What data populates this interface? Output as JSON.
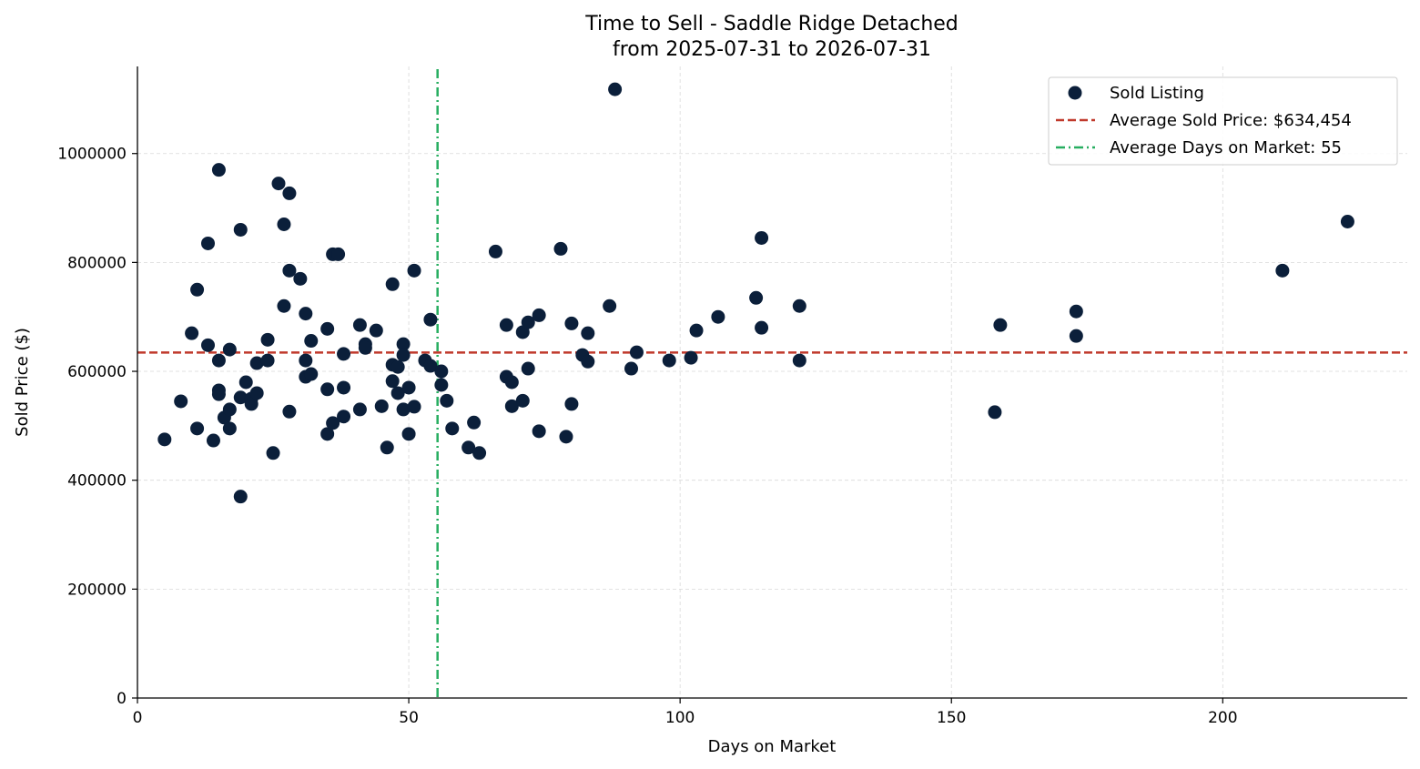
{
  "chart_data": {
    "type": "scatter",
    "title_line1": "Time to Sell - Saddle Ridge Detached",
    "title_line2": "from 2025-07-31 to 2026-07-31",
    "xlabel": "Days on Market",
    "ylabel": "Sold Price ($)",
    "xlim": [
      0,
      234
    ],
    "ylim": [
      0,
      1160000
    ],
    "x_ticks": [
      0,
      50,
      100,
      150,
      200
    ],
    "y_ticks": [
      0,
      200000,
      400000,
      600000,
      800000,
      1000000
    ],
    "grid": true,
    "legend_position": "top-right",
    "colors": {
      "points": "#0b1f3a",
      "avg_price_line": "#c0392b",
      "avg_days_line": "#27ae60",
      "grid": "#d9d9d9"
    },
    "average_price": 634454,
    "average_days": 55.3,
    "legend": {
      "points": "Sold Listing",
      "avg_price": "Average Sold Price: $634,454",
      "avg_days": "Average Days on Market: 55"
    },
    "series": [
      {
        "points": [
          [
            5,
            475000
          ],
          [
            8,
            545000
          ],
          [
            10,
            670000
          ],
          [
            11,
            750000
          ],
          [
            11,
            495000
          ],
          [
            13,
            835000
          ],
          [
            13,
            648000
          ],
          [
            14,
            473000
          ],
          [
            15,
            970000
          ],
          [
            15,
            620000
          ],
          [
            15,
            565000
          ],
          [
            15,
            558000
          ],
          [
            16,
            515000
          ],
          [
            17,
            640000
          ],
          [
            17,
            530000
          ],
          [
            17,
            495000
          ],
          [
            19,
            860000
          ],
          [
            19,
            552000
          ],
          [
            19,
            370000
          ],
          [
            20,
            580000
          ],
          [
            21,
            550000
          ],
          [
            21,
            540000
          ],
          [
            22,
            615000
          ],
          [
            22,
            560000
          ],
          [
            24,
            658000
          ],
          [
            24,
            620000
          ],
          [
            25,
            450000
          ],
          [
            26,
            945000
          ],
          [
            27,
            870000
          ],
          [
            27,
            720000
          ],
          [
            28,
            927000
          ],
          [
            28,
            785000
          ],
          [
            28,
            526000
          ],
          [
            30,
            770000
          ],
          [
            31,
            706000
          ],
          [
            31,
            620000
          ],
          [
            31,
            590000
          ],
          [
            32,
            656000
          ],
          [
            32,
            595000
          ],
          [
            35,
            678000
          ],
          [
            35,
            567000
          ],
          [
            35,
            485000
          ],
          [
            36,
            815000
          ],
          [
            36,
            505000
          ],
          [
            37,
            815000
          ],
          [
            38,
            632000
          ],
          [
            38,
            570000
          ],
          [
            38,
            517000
          ],
          [
            41,
            685000
          ],
          [
            41,
            530000
          ],
          [
            42,
            650000
          ],
          [
            42,
            643000
          ],
          [
            44,
            675000
          ],
          [
            45,
            536000
          ],
          [
            46,
            460000
          ],
          [
            47,
            760000
          ],
          [
            47,
            612000
          ],
          [
            47,
            582000
          ],
          [
            48,
            608000
          ],
          [
            48,
            560000
          ],
          [
            49,
            650000
          ],
          [
            49,
            630000
          ],
          [
            49,
            530000
          ],
          [
            50,
            570000
          ],
          [
            50,
            485000
          ],
          [
            51,
            785000
          ],
          [
            51,
            535000
          ],
          [
            53,
            620000
          ],
          [
            54,
            695000
          ],
          [
            54,
            610000
          ],
          [
            56,
            600000
          ],
          [
            56,
            575000
          ],
          [
            57,
            546000
          ],
          [
            58,
            495000
          ],
          [
            61,
            460000
          ],
          [
            62,
            506000
          ],
          [
            63,
            450000
          ],
          [
            66,
            820000
          ],
          [
            68,
            685000
          ],
          [
            68,
            590000
          ],
          [
            69,
            580000
          ],
          [
            69,
            536000
          ],
          [
            71,
            672000
          ],
          [
            71,
            546000
          ],
          [
            72,
            690000
          ],
          [
            72,
            605000
          ],
          [
            74,
            703000
          ],
          [
            74,
            490000
          ],
          [
            78,
            825000
          ],
          [
            79,
            480000
          ],
          [
            80,
            688000
          ],
          [
            80,
            540000
          ],
          [
            82,
            630000
          ],
          [
            83,
            670000
          ],
          [
            83,
            618000
          ],
          [
            87,
            720000
          ],
          [
            88,
            1118000
          ],
          [
            91,
            605000
          ],
          [
            92,
            635000
          ],
          [
            98,
            620000
          ],
          [
            102,
            625000
          ],
          [
            103,
            675000
          ],
          [
            107,
            700000
          ],
          [
            114,
            735000
          ],
          [
            115,
            845000
          ],
          [
            115,
            680000
          ],
          [
            122,
            720000
          ],
          [
            122,
            620000
          ],
          [
            158,
            525000
          ],
          [
            159,
            685000
          ],
          [
            173,
            710000
          ],
          [
            173,
            665000
          ],
          [
            211,
            785000
          ],
          [
            223,
            875000
          ]
        ]
      }
    ]
  }
}
